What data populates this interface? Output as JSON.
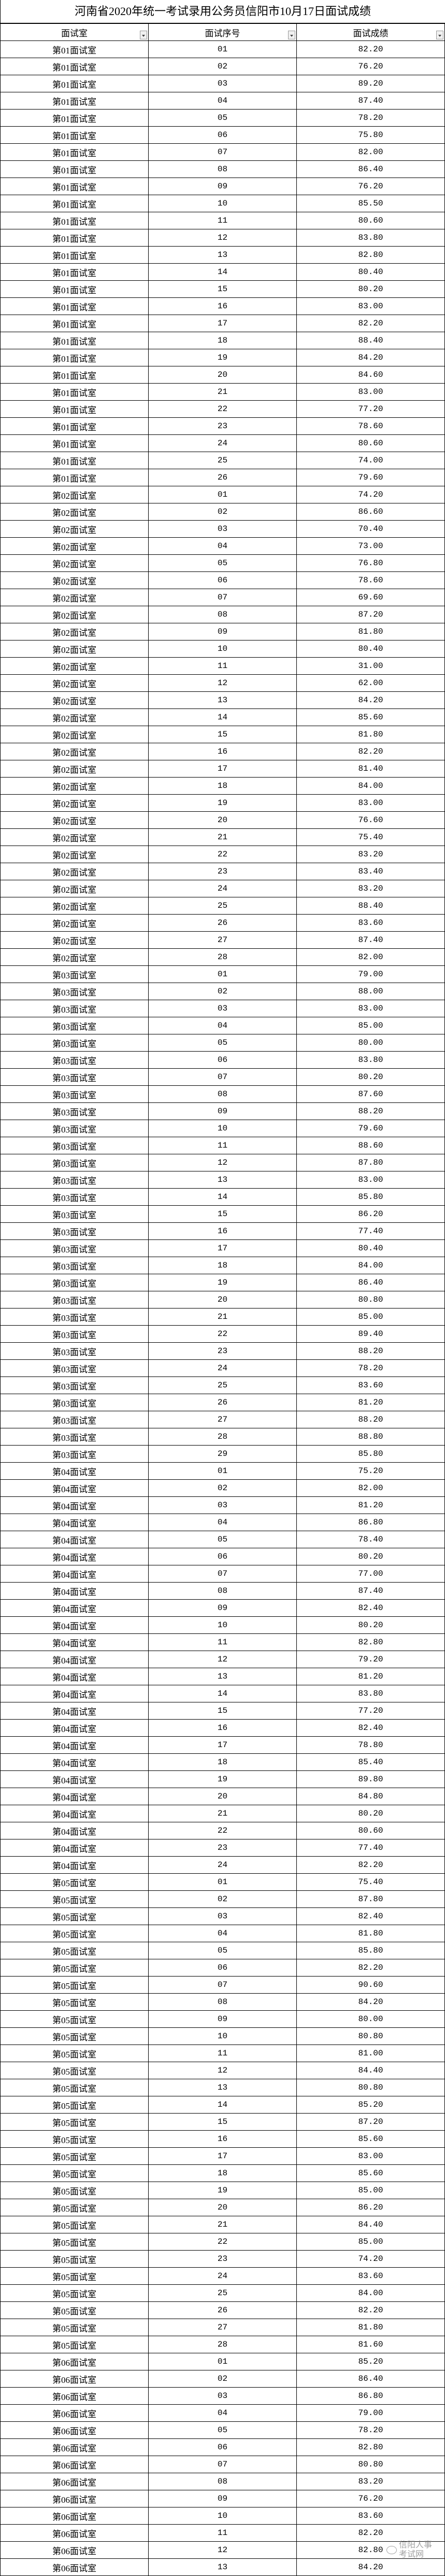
{
  "title": "河南省2020年统一考试录用公务员信阳市10月17日面试成绩",
  "headers": [
    "面试室",
    "面试序号",
    "面试成绩"
  ],
  "watermark": "信阳人事考试网",
  "rooms": [
    {
      "name": "第01面试室",
      "scores": [
        "82.20",
        "76.20",
        "89.20",
        "87.40",
        "78.20",
        "75.80",
        "82.00",
        "86.40",
        "76.20",
        "85.50",
        "80.60",
        "83.80",
        "82.80",
        "80.40",
        "80.20",
        "83.00",
        "82.20",
        "88.40",
        "84.20",
        "84.60",
        "83.00",
        "77.20",
        "78.60",
        "80.60",
        "74.00",
        "79.60"
      ]
    },
    {
      "name": "第02面试室",
      "scores": [
        "74.20",
        "86.60",
        "70.40",
        "73.00",
        "76.80",
        "78.60",
        "69.60",
        "87.20",
        "81.80",
        "80.40",
        "31.00",
        "62.00",
        "84.20",
        "85.60",
        "81.80",
        "82.20",
        "81.40",
        "84.00",
        "83.00",
        "76.60",
        "75.40",
        "83.20",
        "83.40",
        "83.20",
        "88.40",
        "83.60",
        "87.40",
        "82.00"
      ]
    },
    {
      "name": "第03面试室",
      "scores": [
        "79.00",
        "88.00",
        "83.00",
        "85.00",
        "80.00",
        "83.80",
        "80.20",
        "87.60",
        "88.20",
        "79.60",
        "88.60",
        "87.80",
        "83.00",
        "85.80",
        "86.20",
        "77.40",
        "80.40",
        "84.00",
        "86.40",
        "80.80",
        "85.00",
        "89.40",
        "88.20",
        "78.20",
        "83.60",
        "81.20",
        "88.20",
        "88.80",
        "85.80"
      ]
    },
    {
      "name": "第04面试室",
      "scores": [
        "75.20",
        "82.00",
        "81.20",
        "86.80",
        "78.40",
        "80.20",
        "77.00",
        "87.40",
        "82.40",
        "80.20",
        "82.80",
        "79.20",
        "81.20",
        "83.80",
        "77.20",
        "82.40",
        "78.80",
        "85.40",
        "89.80",
        "84.80",
        "80.20",
        "80.60",
        "77.40",
        "82.20"
      ]
    },
    {
      "name": "第05面试室",
      "scores": [
        "75.40",
        "87.80",
        "82.40",
        "81.80",
        "85.80",
        "82.20",
        "90.60",
        "84.20",
        "80.00",
        "80.80",
        "81.00",
        "84.40",
        "80.80",
        "85.20",
        "87.20",
        "85.60",
        "83.00",
        "85.60",
        "85.00",
        "86.20",
        "84.40",
        "85.00",
        "74.20",
        "83.60",
        "84.00",
        "82.20",
        "81.80",
        "81.60"
      ]
    },
    {
      "name": "第06面试室",
      "scores": [
        "85.20",
        "86.40",
        "86.80",
        "79.00",
        "78.20",
        "82.80",
        "80.80",
        "83.20",
        "76.20",
        "83.60",
        "82.20",
        "82.80",
        "84.20"
      ]
    }
  ]
}
